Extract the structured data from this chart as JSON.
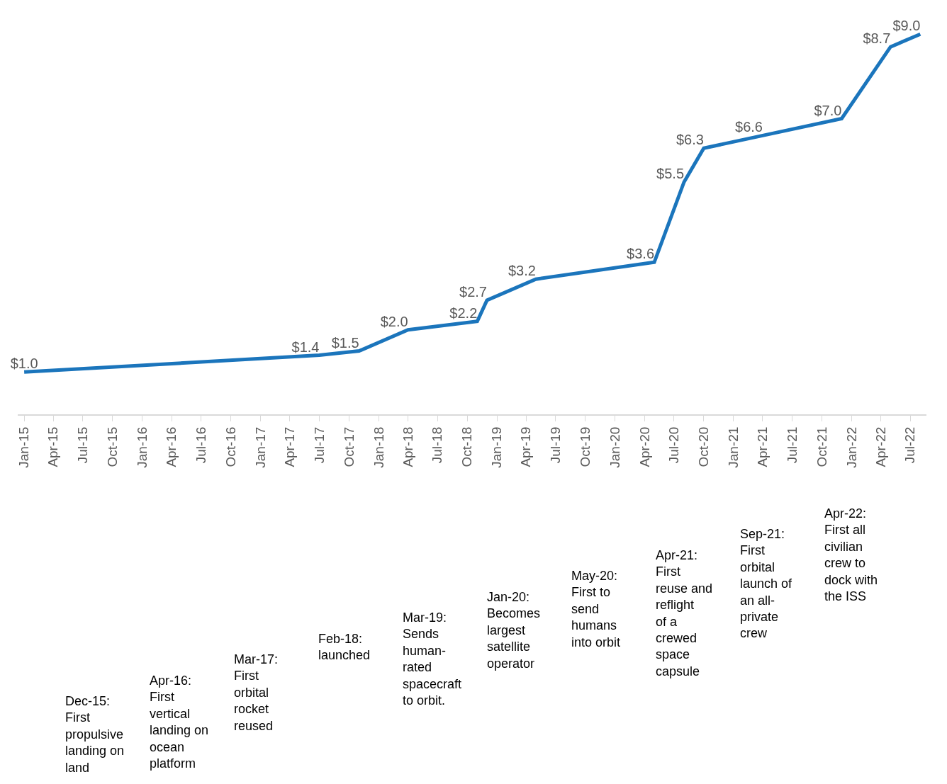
{
  "chart_data": {
    "type": "line",
    "x": [
      "2015-01",
      "2017-07",
      "2017-11",
      "2018-04",
      "2018-11",
      "2018-12",
      "2019-05",
      "2020-05",
      "2020-08",
      "2020-10",
      "2021-04",
      "2021-12",
      "2022-05",
      "2022-08"
    ],
    "series": [
      {
        "color": "#1b75bc",
        "values": [
          1.0,
          1.4,
          1.5,
          2.0,
          2.2,
          2.7,
          3.2,
          3.6,
          5.5,
          6.3,
          6.6,
          7.0,
          8.7,
          9.0
        ],
        "value_labels": [
          "$1.0",
          "$1.4",
          "$1.5",
          "$2.0",
          "$2.2",
          "$2.7",
          "$3.2",
          "$3.6",
          "$5.5",
          "$6.3",
          "$6.6",
          "$7.0",
          "$8.7",
          "$9.0"
        ]
      }
    ],
    "xlim": [
      "2014-12-12",
      "2022-08-20"
    ],
    "xticks": [
      {
        "value": "2015-01",
        "label": "Jan-15"
      },
      {
        "value": "2015-04",
        "label": "Apr-15"
      },
      {
        "value": "2015-07",
        "label": "Jul-15"
      },
      {
        "value": "2015-10",
        "label": "Oct-15"
      },
      {
        "value": "2016-01",
        "label": "Jan-16"
      },
      {
        "value": "2016-04",
        "label": "Apr-16"
      },
      {
        "value": "2016-07",
        "label": "Jul-16"
      },
      {
        "value": "2016-10",
        "label": "Oct-16"
      },
      {
        "value": "2017-01",
        "label": "Jan-17"
      },
      {
        "value": "2017-04",
        "label": "Apr-17"
      },
      {
        "value": "2017-07",
        "label": "Jul-17"
      },
      {
        "value": "2017-10",
        "label": "Oct-17"
      },
      {
        "value": "2018-01",
        "label": "Jan-18"
      },
      {
        "value": "2018-04",
        "label": "Apr-18"
      },
      {
        "value": "2018-07",
        "label": "Jul-18"
      },
      {
        "value": "2018-10",
        "label": "Oct-18"
      },
      {
        "value": "2019-01",
        "label": "Jan-19"
      },
      {
        "value": "2019-04",
        "label": "Apr-19"
      },
      {
        "value": "2019-07",
        "label": "Jul-19"
      },
      {
        "value": "2019-10",
        "label": "Oct-19"
      },
      {
        "value": "2020-01",
        "label": "Jan-20"
      },
      {
        "value": "2020-04",
        "label": "Apr-20"
      },
      {
        "value": "2020-07",
        "label": "Jul-20"
      },
      {
        "value": "2020-10",
        "label": "Oct-20"
      },
      {
        "value": "2021-01",
        "label": "Jan-21"
      },
      {
        "value": "2021-04",
        "label": "Apr-21"
      },
      {
        "value": "2021-07",
        "label": "Jul-21"
      },
      {
        "value": "2021-10",
        "label": "Oct-21"
      },
      {
        "value": "2022-01",
        "label": "Jan-22"
      },
      {
        "value": "2022-04",
        "label": "Apr-22"
      },
      {
        "value": "2022-07",
        "label": "Jul-22"
      }
    ],
    "tick_labels": "x",
    "marker": "none",
    "line_style": "solid",
    "annotations": [
      "Dec-15: First propulsive landing on land",
      "Apr-16: First vertical landing on ocean platform",
      "Mar-17: First orbital rocket reused",
      "Feb-18: launched",
      "Mar-19: Sends human-rated spacecraft to orbit.",
      "Jan-20: Becomes largest satellite operator",
      "May-20: First to send humans into orbit",
      "Apr-21: First reuse and reflight of a crewed space capsule",
      "Sep-21: First orbital launch of an all-private crew",
      "Apr-22: First all civilian crew to dock with the ISS"
    ]
  }
}
